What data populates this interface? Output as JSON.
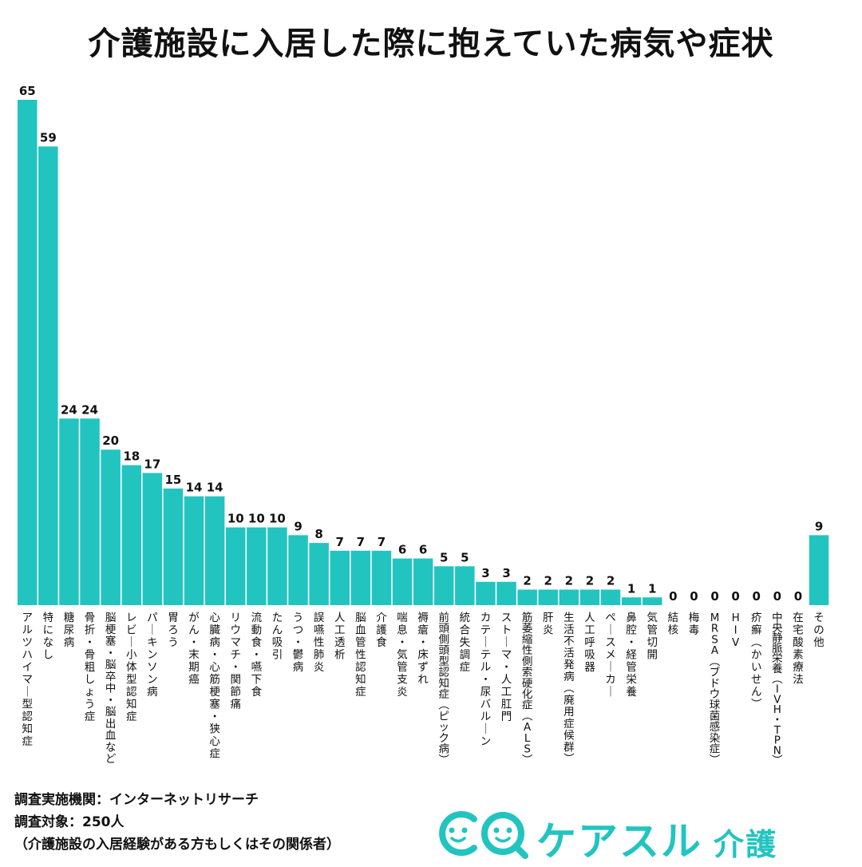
{
  "title": "介護施設に入居した際に抱えていた病気や症状",
  "colors": {
    "bar": "#22c4c0",
    "brand": "#22c4c0"
  },
  "chart_data": {
    "type": "bar",
    "title": "介護施設に入居した際に抱えていた病気や症状",
    "xlabel": "",
    "ylabel": "",
    "ylim": [
      0,
      65
    ],
    "grid": false,
    "categories": [
      "アルツハイマー型認知症",
      "特になし",
      "糖尿病",
      "骨折・骨粗しょう症",
      "脳梗塞・脳卒中・脳出血など",
      "レビー小体型認知症",
      "パーキンソン病",
      "胃ろう",
      "がん・末期癌",
      "心臓病・心筋梗塞・狭心症",
      "リウマチ・関節痛",
      "流動食・嚥下食",
      "たん吸引",
      "うつ・鬱病",
      "誤嚥性肺炎",
      "人工透析",
      "脳血管性認知症",
      "介護食",
      "喘息・気管支炎",
      "褥瘡・床ずれ",
      "前頭側頭型認知症（ピック病）",
      "統合失調症",
      "カテーテル・尿バルーン",
      "ストーマ・人工肛門",
      "筋萎縮性側索硬化症（ALS）",
      "肝炎",
      "生活不活発病（廃用症候群）",
      "人工呼吸器",
      "ペースメーカー",
      "鼻腔・経管栄養",
      "気管切開",
      "結核",
      "梅毒",
      "MRSA（ブドウ球菌感染症）",
      "HIV",
      "疥癬（かいせん）",
      "中央静脈栄養（IVH・TPN）",
      "在宅酸素療法",
      "その他"
    ],
    "values": [
      65,
      59,
      24,
      24,
      20,
      18,
      17,
      15,
      14,
      14,
      10,
      10,
      10,
      9,
      8,
      7,
      7,
      7,
      6,
      6,
      5,
      5,
      3,
      3,
      2,
      2,
      2,
      2,
      2,
      1,
      1,
      0,
      0,
      0,
      0,
      0,
      0,
      0,
      9
    ]
  },
  "footer": {
    "line1": "調査実施機関：インターネットリサーチ",
    "line2": "調査対象：250人",
    "line3": "（介護施設の入居経験がある方もしくはその関係者）"
  },
  "brand": {
    "name": "ケアスル",
    "sub": "介護",
    "logo_icon": "smile-faces-logo-icon"
  }
}
